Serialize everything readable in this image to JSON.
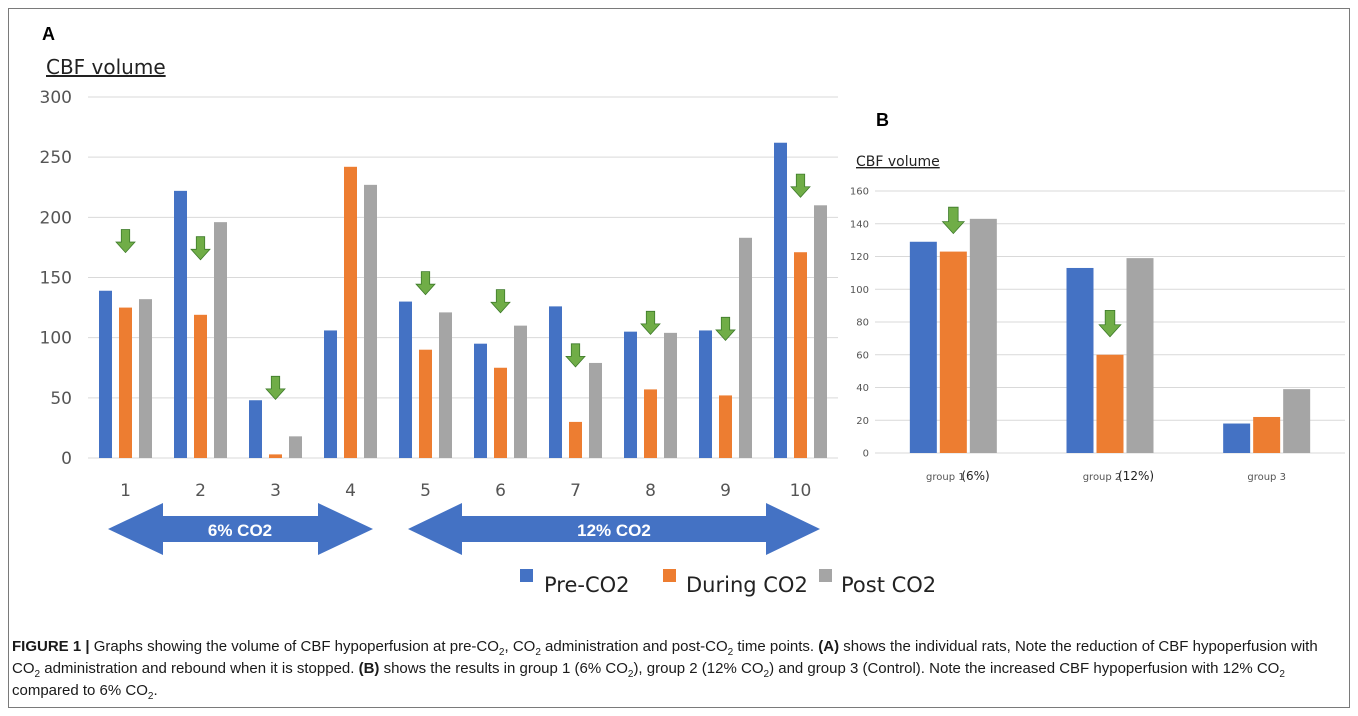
{
  "panel_a_label": "A",
  "panel_b_label": "B",
  "legend": {
    "entries": [
      {
        "name": "Pre-CO2",
        "color": "#4472c4"
      },
      {
        "name": "During CO2",
        "color": "#ed7d31"
      },
      {
        "name": "Post CO2",
        "color": "#a5a5a5"
      }
    ]
  },
  "annotations": {
    "arrow_6": "6% CO2",
    "arrow_12": "12% CO2",
    "arrow_color": "#4472c4",
    "down_arrow_color": "#70ad47"
  },
  "chart_data": [
    {
      "type": "bar",
      "title": "",
      "ylabel": "CBF volume",
      "xlabel": "",
      "ylim": [
        0,
        300
      ],
      "yticks": [
        0,
        50,
        100,
        150,
        200,
        250,
        300
      ],
      "grid": true,
      "legend_position": "bottom",
      "categories": [
        "1",
        "2",
        "3",
        "4",
        "5",
        "6",
        "7",
        "8",
        "9",
        "10"
      ],
      "series": [
        {
          "name": "Pre-CO2",
          "color": "#4472c4",
          "values": [
            139,
            222,
            48,
            106,
            130,
            95,
            126,
            105,
            106,
            262
          ]
        },
        {
          "name": "During CO2",
          "color": "#ed7d31",
          "values": [
            125,
            119,
            3,
            242,
            90,
            75,
            30,
            57,
            52,
            171
          ]
        },
        {
          "name": "Post CO2",
          "color": "#a5a5a5",
          "values": [
            132,
            196,
            18,
            227,
            121,
            110,
            79,
            104,
            183,
            210
          ]
        }
      ],
      "green_arrows_over": [
        "1",
        "2",
        "3",
        "5",
        "6",
        "7",
        "8",
        "9",
        "10"
      ]
    },
    {
      "type": "bar",
      "title": "",
      "ylabel": "CBF volume",
      "xlabel": "",
      "ylim": [
        0,
        160
      ],
      "yticks": [
        0,
        20,
        40,
        60,
        80,
        100,
        120,
        140,
        160
      ],
      "grid": true,
      "categories": [
        "group 1",
        "group 2",
        "group 3"
      ],
      "category_notes": [
        "(6%)",
        "(12%)",
        ""
      ],
      "series": [
        {
          "name": "Pre-CO2",
          "color": "#4472c4",
          "values": [
            129,
            113,
            18
          ]
        },
        {
          "name": "During CO2",
          "color": "#ed7d31",
          "values": [
            123,
            60,
            22
          ]
        },
        {
          "name": "Post CO2",
          "color": "#a5a5a5",
          "values": [
            143,
            119,
            39
          ]
        }
      ],
      "green_arrows_over": [
        "group 1",
        "group 2"
      ]
    }
  ],
  "caption": {
    "label": "FIGURE 1 |",
    "line1_a": " Graphs showing the volume of CBF hypoperfusion at pre-CO",
    "sub1": "2",
    "line1_b": ", CO",
    "sub2": "2",
    "line1_c": " administration and post-CO",
    "sub3": "2",
    "line1_d": " time points. ",
    "ref_a": "(A)",
    "line1_e": " shows the individual rats, Note the reduction of CBF hypoperfusion with CO",
    "sub4": "2",
    "line2_a": " administration and rebound when it is stopped. ",
    "ref_b": "(B)",
    "line2_b": " shows the results in group 1 (6% CO",
    "sub5": "2",
    "line2_c": "), group 2 (12% CO",
    "sub6": "2",
    "line2_d": ") and group 3 (Control). Note the increased CBF hypoperfusion with 12% CO",
    "sub7": "2",
    "line2_e": " compared to 6% CO",
    "sub8": "2",
    "line2_f": "."
  }
}
